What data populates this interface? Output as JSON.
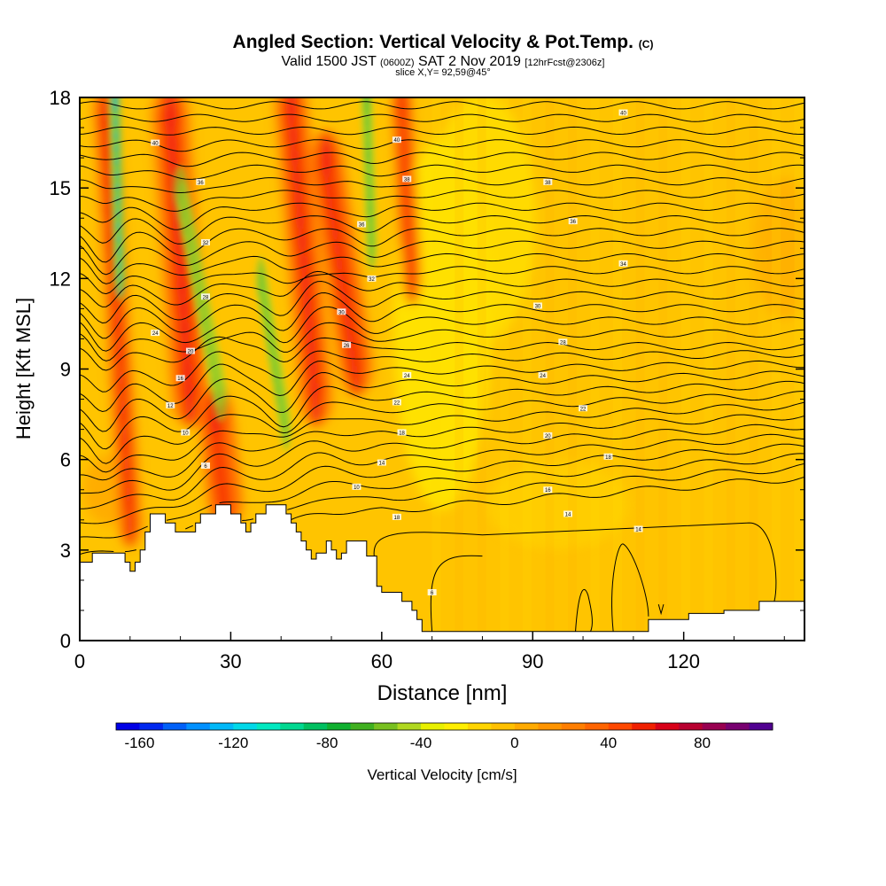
{
  "header": {
    "title": "Angled Section: Vertical Velocity & Pot.Temp.",
    "title_suffix": "(C)",
    "subtitle_a": "Valid 1500 JST",
    "subtitle_b": "(0600Z)",
    "subtitle_c": "SAT 2 Nov 2019",
    "subtitle_d": "[12hrFcst@2306z]",
    "slice": "slice X,Y= 92,59@45°"
  },
  "chart_data": {
    "type": "heatmap",
    "title": "Angled Section: Vertical Velocity & Pot.Temp.",
    "xlabel": "Distance [nm]",
    "ylabel": "Height [Kft MSL]",
    "xlim": [
      0,
      144
    ],
    "ylim": [
      0,
      18
    ],
    "x_ticks": [
      0,
      30,
      60,
      90,
      120
    ],
    "y_ticks": [
      0,
      3,
      6,
      9,
      12,
      15,
      18
    ],
    "grid": false,
    "fill_variable": "Vertical Velocity [cm/s]",
    "contour_variable": "Pot.Temp.",
    "colorbar": {
      "label": "Vertical Velocity [cm/s]",
      "placement": "bottom",
      "min": -170,
      "max": 110,
      "tick_values": [
        -160,
        -120,
        -80,
        -40,
        0,
        40,
        80
      ],
      "colors": [
        "#0000e6",
        "#0028f0",
        "#0060f8",
        "#0090ff",
        "#00b8f8",
        "#00d8e8",
        "#00e8c0",
        "#00d890",
        "#00c060",
        "#10b030",
        "#40b020",
        "#78c020",
        "#b0d820",
        "#e8f000",
        "#ffee00",
        "#ffd400",
        "#ffc000",
        "#ffaa00",
        "#ff9400",
        "#ff7e00",
        "#ff6400",
        "#ff4800",
        "#f02000",
        "#d80018",
        "#b80030",
        "#980050",
        "#780070",
        "#500090"
      ]
    },
    "updraft_bands": [
      {
        "x_base": 10,
        "x_top": 5,
        "y_from": 4,
        "y_to": 17.5,
        "w": 5
      },
      {
        "x_base": 22,
        "x_top": 18,
        "y_from": 8,
        "y_to": 17.5,
        "w": 8
      },
      {
        "x_base": 29,
        "x_top": 27,
        "y_from": 4.5,
        "y_to": 7.5,
        "w": 7
      },
      {
        "x_base": 47,
        "x_top": 42,
        "y_from": 8,
        "y_to": 17.8,
        "w": 7
      },
      {
        "x_base": 55,
        "x_top": 49,
        "y_from": 9,
        "y_to": 16,
        "w": 7
      },
      {
        "x_base": 66,
        "x_top": 64,
        "y_from": 12,
        "y_to": 17.8,
        "w": 4
      }
    ],
    "downdraft_bands": [
      {
        "x_base": 8,
        "x_top": 7,
        "y_from": 12,
        "y_to": 18,
        "w": 3.5,
        "strength": 1
      },
      {
        "x_base": 28,
        "x_top": 20,
        "y_from": 8,
        "y_to": 15,
        "w": 4,
        "strength": 0.5
      },
      {
        "x_base": 41,
        "x_top": 36,
        "y_from": 7,
        "y_to": 12,
        "w": 3,
        "strength": 0.7
      },
      {
        "x_base": 58,
        "x_top": 57,
        "y_from": 13,
        "y_to": 18,
        "w": 3,
        "strength": 0.8
      }
    ],
    "contour_labels": [
      {
        "x": 15,
        "y": 16.5,
        "text": "40"
      },
      {
        "x": 24,
        "y": 15.2,
        "text": "36"
      },
      {
        "x": 25,
        "y": 13.2,
        "text": "32"
      },
      {
        "x": 25,
        "y": 11.4,
        "text": "28"
      },
      {
        "x": 15,
        "y": 10.2,
        "text": "24"
      },
      {
        "x": 22,
        "y": 9.6,
        "text": "20"
      },
      {
        "x": 20,
        "y": 8.7,
        "text": "16"
      },
      {
        "x": 18,
        "y": 7.8,
        "text": "12"
      },
      {
        "x": 21,
        "y": 6.9,
        "text": "10"
      },
      {
        "x": 25,
        "y": 5.8,
        "text": "6"
      },
      {
        "x": 63,
        "y": 16.6,
        "text": "40"
      },
      {
        "x": 65,
        "y": 15.3,
        "text": "38"
      },
      {
        "x": 56,
        "y": 13.8,
        "text": "36"
      },
      {
        "x": 58,
        "y": 12,
        "text": "32"
      },
      {
        "x": 52,
        "y": 10.9,
        "text": "30"
      },
      {
        "x": 53,
        "y": 9.8,
        "text": "26"
      },
      {
        "x": 65,
        "y": 8.8,
        "text": "24"
      },
      {
        "x": 63,
        "y": 7.9,
        "text": "22"
      },
      {
        "x": 64,
        "y": 6.9,
        "text": "18"
      },
      {
        "x": 60,
        "y": 5.9,
        "text": "14"
      },
      {
        "x": 55,
        "y": 5.1,
        "text": "10"
      },
      {
        "x": 63,
        "y": 4.1,
        "text": "18"
      },
      {
        "x": 70,
        "y": 1.6,
        "text": "6"
      },
      {
        "x": 108,
        "y": 17.5,
        "text": "40"
      },
      {
        "x": 93,
        "y": 15.2,
        "text": "38"
      },
      {
        "x": 98,
        "y": 13.9,
        "text": "36"
      },
      {
        "x": 108,
        "y": 12.5,
        "text": "34"
      },
      {
        "x": 91,
        "y": 11.1,
        "text": "30"
      },
      {
        "x": 96,
        "y": 9.9,
        "text": "28"
      },
      {
        "x": 92,
        "y": 8.8,
        "text": "24"
      },
      {
        "x": 100,
        "y": 7.7,
        "text": "22"
      },
      {
        "x": 93,
        "y": 6.8,
        "text": "20"
      },
      {
        "x": 105,
        "y": 6.1,
        "text": "18"
      },
      {
        "x": 93,
        "y": 5.0,
        "text": "16"
      },
      {
        "x": 97,
        "y": 4.2,
        "text": "14"
      },
      {
        "x": 111,
        "y": 3.7,
        "text": "14"
      }
    ]
  }
}
